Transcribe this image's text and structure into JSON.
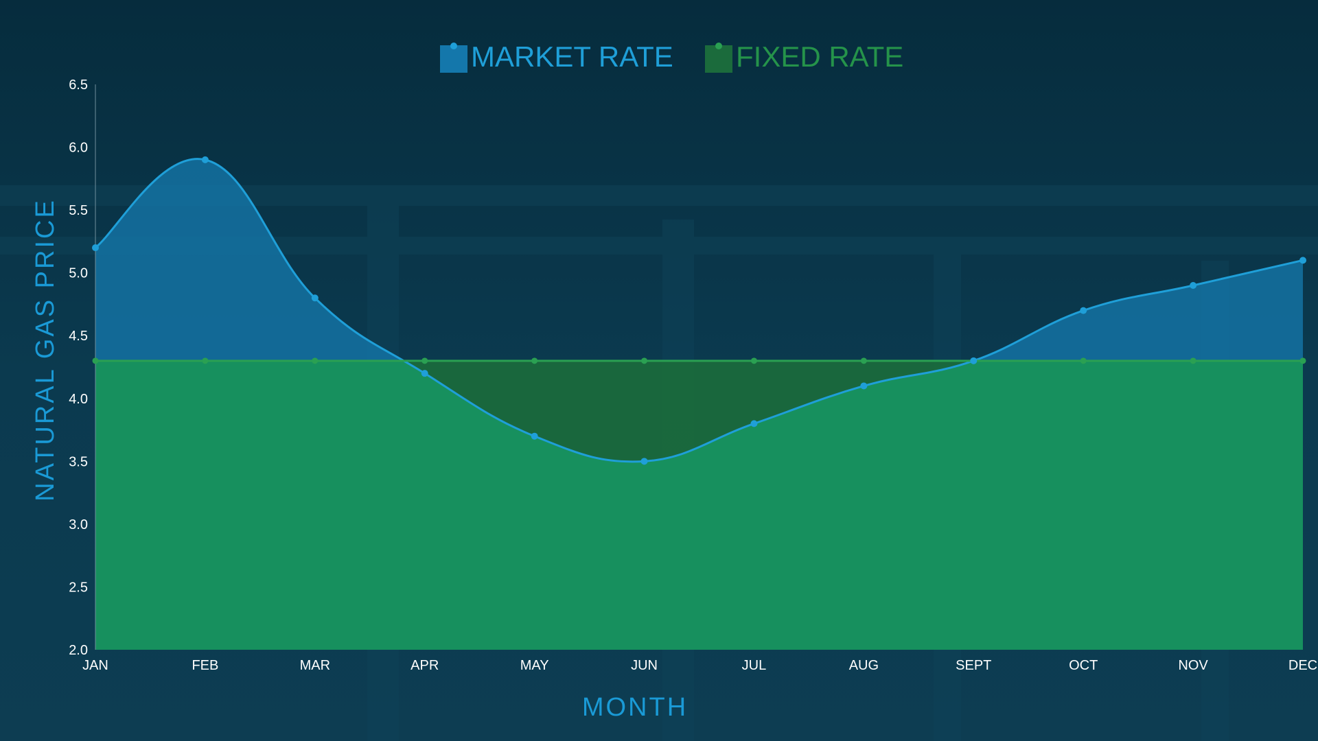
{
  "colors": {
    "background": "#0a3346",
    "market": "#1f9fd8",
    "market_fill": "#1477ab",
    "fixed": "#2aa052",
    "fixed_label": "#25934a",
    "fixed_fill": "#17905e",
    "axis_title": "#1a9ad6"
  },
  "chart_data": {
    "type": "area",
    "categories": [
      "JAN",
      "FEB",
      "MAR",
      "APR",
      "MAY",
      "JUN",
      "JUL",
      "AUG",
      "SEPT",
      "OCT",
      "NOV",
      "DEC"
    ],
    "series": [
      {
        "name": "MARKET RATE",
        "values": [
          5.2,
          5.9,
          4.8,
          4.2,
          3.7,
          3.5,
          3.8,
          4.1,
          4.3,
          4.7,
          4.9,
          5.1
        ]
      },
      {
        "name": "FIXED RATE",
        "values": [
          4.3,
          4.3,
          4.3,
          4.3,
          4.3,
          4.3,
          4.3,
          4.3,
          4.3,
          4.3,
          4.3,
          4.3
        ]
      }
    ],
    "xlabel": "MONTH",
    "ylabel": "NATURAL GAS PRICE",
    "ylim": [
      2.0,
      6.5
    ],
    "yticks": [
      "2.0",
      "2.5",
      "3.0",
      "3.5",
      "4.0",
      "4.5",
      "5.0",
      "5.5",
      "6.0",
      "6.5"
    ],
    "grid": false,
    "legend_position": "top-center"
  }
}
